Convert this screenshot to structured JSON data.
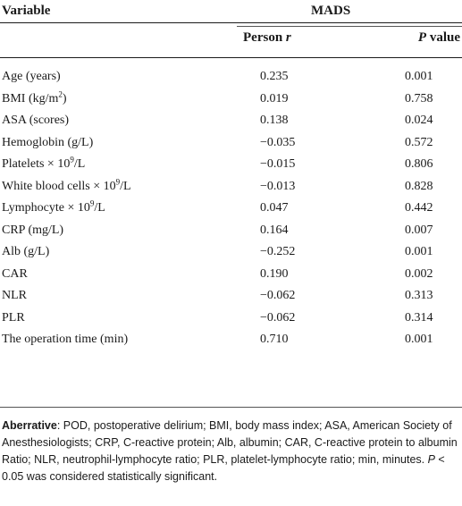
{
  "header": {
    "variable": "Variable",
    "group": "MADS",
    "col_r": "Person r",
    "col_p": "P value"
  },
  "rows": [
    {
      "label": "Age (years)",
      "r": "0.235",
      "p": "0.001"
    },
    {
      "label": "BMI (kg/m",
      "sup": "2",
      "suffix": ")",
      "r": "0.019",
      "p": "0.758"
    },
    {
      "label": "ASA (scores)",
      "r": "0.138",
      "p": "0.024"
    },
    {
      "label": "Hemoglobin (g/L)",
      "r": "−0.035",
      "p": "0.572"
    },
    {
      "label": "Platelets × 10",
      "sup": "9",
      "suffix": "/L",
      "r": "−0.015",
      "p": "0.806"
    },
    {
      "label": "White blood cells × 10",
      "sup": "9",
      "suffix": "/L",
      "r": "−0.013",
      "p": "0.828"
    },
    {
      "label": "Lymphocyte × 10",
      "sup": "9",
      "suffix": "/L",
      "r": "0.047",
      "p": "0.442"
    },
    {
      "label": "CRP (mg/L)",
      "r": "0.164",
      "p": "0.007"
    },
    {
      "label": "Alb (g/L)",
      "r": "−0.252",
      "p": "0.001"
    },
    {
      "label": "CAR",
      "r": "0.190",
      "p": "0.002"
    },
    {
      "label": "NLR",
      "r": "−0.062",
      "p": "0.313"
    },
    {
      "label": "PLR",
      "r": "−0.062",
      "p": "0.314"
    },
    {
      "label": "The operation time (min)",
      "r": "0.710",
      "p": "0.001"
    }
  ],
  "footnote": {
    "lead": "Aberrative",
    "text": ": POD, postoperative delirium; BMI, body mass index; ASA, American Society of Anesthesiologists; CRP, C-reactive protein; Alb, albumin; CAR, C-reactive protein to albumin Ratio; NLR, neutrophil-lymphocyte ratio; PLR, platelet-lymphocyte ratio; min, minutes. ",
    "p_sym": "P",
    "tail": " < 0.05 was considered statistically significant."
  }
}
